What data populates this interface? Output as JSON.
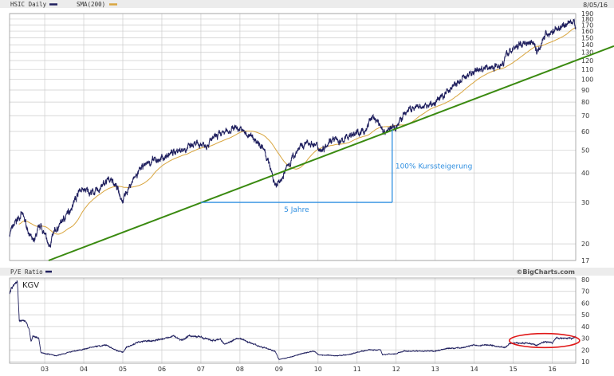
{
  "header": {
    "ticker_legend": "HSIC Daily",
    "sma_legend": "SMA(200)",
    "date": "8/05/16"
  },
  "lower_header": {
    "legend": "P/E Ratio",
    "brand": "©BigCharts.com"
  },
  "colors": {
    "price": "#1f1f5e",
    "sma": "#d9a640",
    "trend": "#3a8a10",
    "annotation": "#2f8fe0",
    "ellipse": "#e01818",
    "grid": "#cccccc",
    "header_bg": "#ececec"
  },
  "chart_data": [
    {
      "type": "line",
      "title": "",
      "yscale": "log",
      "ylim": [
        17,
        190
      ],
      "xlim": [
        2002.1,
        2016.6
      ],
      "y_ticks": [
        17,
        20,
        30,
        40,
        50,
        60,
        70,
        80,
        90,
        100,
        110,
        120,
        130,
        140,
        150,
        160,
        170,
        180,
        190
      ],
      "x_ticks": [
        "03",
        "04",
        "05",
        "06",
        "07",
        "08",
        "09",
        "10",
        "11",
        "12",
        "13",
        "14",
        "15",
        "16"
      ],
      "grid": true,
      "series": [
        {
          "name": "HSIC Daily",
          "x": [
            2002.1,
            2002.4,
            2002.7,
            2002.9,
            2003.1,
            2003.3,
            2003.6,
            2003.9,
            2004.3,
            2004.7,
            2005.0,
            2005.3,
            2005.6,
            2006.0,
            2006.4,
            2006.8,
            2007.2,
            2007.5,
            2007.9,
            2008.2,
            2008.5,
            2008.7,
            2008.9,
            2009.0,
            2009.2,
            2009.5,
            2009.8,
            2010.1,
            2010.3,
            2010.6,
            2010.8,
            2011.2,
            2011.4,
            2011.7,
            2012.0,
            2012.3,
            2012.7,
            2013.0,
            2013.3,
            2013.7,
            2014.0,
            2014.4,
            2014.7,
            2014.9,
            2015.2,
            2015.5,
            2015.6,
            2015.8,
            2016.0,
            2016.3,
            2016.5,
            2016.6
          ],
          "values": [
            22,
            27,
            20,
            24,
            19.5,
            23,
            27,
            34,
            33,
            38,
            31,
            38,
            44,
            46,
            50,
            52,
            54,
            58,
            63,
            58,
            54,
            46,
            35,
            36,
            42,
            51,
            54,
            50,
            56,
            54,
            58,
            60,
            70,
            60,
            63,
            74,
            76,
            79,
            89,
            100,
            109,
            112,
            117,
            131,
            141,
            147,
            131,
            152,
            159,
            170,
            176,
            172
          ]
        },
        {
          "name": "SMA(200)",
          "derived": "200-day moving average of HSIC Daily"
        }
      ],
      "annotations": [
        {
          "type": "trendline",
          "from": [
            2003.1,
            17
          ],
          "to": [
            2016.6,
            120
          ]
        },
        {
          "type": "horizontal",
          "text": "5 Jahre",
          "from": [
            2007.0,
            30
          ],
          "to": [
            2011.9,
            30
          ]
        },
        {
          "type": "vertical",
          "text": "100% Kurssteigerung",
          "from": [
            2011.9,
            30
          ],
          "to": [
            2011.9,
            61
          ]
        }
      ]
    },
    {
      "type": "line",
      "title": "",
      "label": "KGV",
      "ylim": [
        10,
        80
      ],
      "y_ticks": [
        10,
        20,
        30,
        40,
        50,
        60,
        70,
        80
      ],
      "xlim": [
        2002.1,
        2016.6
      ],
      "x_ticks": [
        "03",
        "04",
        "05",
        "06",
        "07",
        "08",
        "09",
        "10",
        "11",
        "12",
        "13",
        "14",
        "15",
        "16"
      ],
      "grid": true,
      "series": [
        {
          "name": "P/E Ratio",
          "x": [
            2002.1,
            2002.2,
            2002.3,
            2002.35,
            2002.5,
            2002.6,
            2002.65,
            2002.7,
            2002.85,
            2002.9,
            2003.0,
            2003.3,
            2003.6,
            2003.9,
            2004.3,
            2004.6,
            2004.8,
            2005.0,
            2005.1,
            2005.4,
            2005.8,
            2006.1,
            2006.3,
            2006.5,
            2006.7,
            2007.0,
            2007.3,
            2007.5,
            2007.6,
            2007.8,
            2008.0,
            2008.2,
            2008.6,
            2008.9,
            2009.0,
            2009.3,
            2009.6,
            2009.9,
            2010.0,
            2010.5,
            2010.8,
            2011.0,
            2011.3,
            2011.6,
            2011.65,
            2012.0,
            2012.2,
            2012.7,
            2013.0,
            2013.3,
            2013.7,
            2014.0,
            2014.4,
            2014.8,
            2014.9,
            2015.3,
            2015.6,
            2015.8,
            2016.0,
            2016.1,
            2016.5,
            2016.6
          ],
          "values": [
            68,
            76,
            78,
            45,
            44,
            38,
            27,
            32,
            30,
            18,
            17,
            15,
            18,
            20,
            23,
            24,
            20,
            18,
            22,
            27,
            28,
            30,
            32,
            28,
            32,
            31,
            28,
            29,
            25,
            28,
            30,
            27,
            22,
            19,
            12,
            14,
            17,
            19,
            16,
            15,
            16,
            18,
            20,
            20,
            16,
            17,
            19,
            19,
            19,
            21,
            22,
            24,
            24,
            22,
            26,
            26,
            24,
            27,
            26,
            30,
            30,
            31
          ]
        }
      ],
      "annotations": [
        {
          "type": "ellipse",
          "x_range": [
            2014.9,
            2016.7
          ],
          "y_range": [
            22,
            34
          ]
        }
      ]
    }
  ]
}
